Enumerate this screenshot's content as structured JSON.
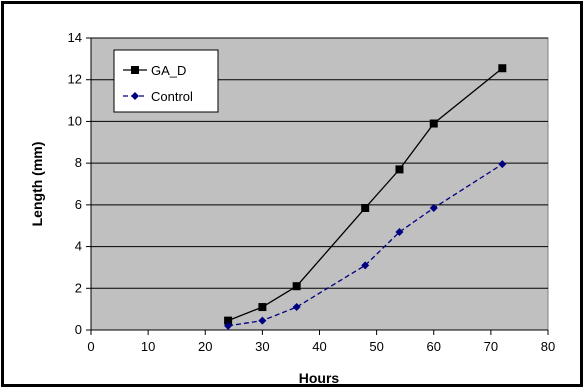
{
  "chart_data": {
    "type": "line",
    "title": "",
    "xlabel": "Hours",
    "ylabel": "Length (mm)",
    "xlim": [
      0,
      80
    ],
    "ylim": [
      0,
      14
    ],
    "x_ticks": [
      "0",
      "10",
      "20",
      "30",
      "40",
      "50",
      "60",
      "70",
      "80"
    ],
    "y_ticks": [
      "0",
      "2",
      "4",
      "6",
      "8",
      "10",
      "12",
      "14"
    ],
    "grid": "horizontal",
    "plot_background": "#c0c0c0",
    "legend_position": "top-left",
    "series": [
      {
        "name": "GA_D",
        "color": "#000000",
        "marker": "square",
        "line_style": "solid",
        "x": [
          24,
          30,
          36,
          48,
          54,
          60,
          72
        ],
        "y": [
          0.45,
          1.1,
          2.1,
          5.85,
          7.7,
          9.9,
          12.55
        ]
      },
      {
        "name": "Control",
        "color": "#000080",
        "marker": "diamond",
        "line_style": "dashed",
        "x": [
          24,
          30,
          36,
          48,
          54,
          60,
          72
        ],
        "y": [
          0.2,
          0.45,
          1.1,
          3.1,
          4.7,
          5.85,
          7.95
        ]
      }
    ]
  }
}
